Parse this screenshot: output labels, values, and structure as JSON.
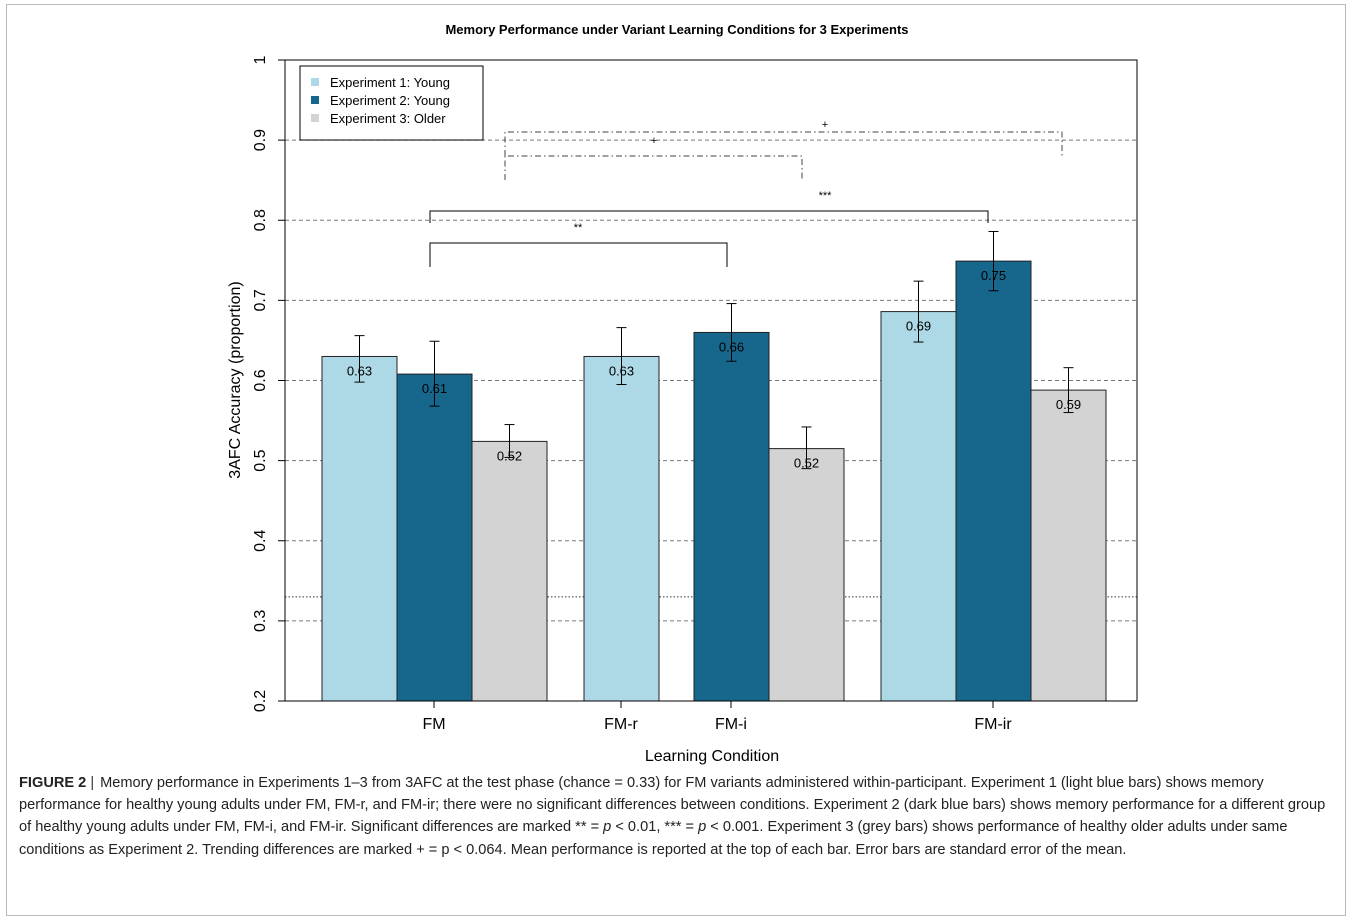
{
  "chart_data": {
    "type": "bar",
    "title": "Memory Performance under Variant Learning Conditions for 3 Experiments",
    "xlabel": "Learning Condition",
    "ylabel": "3AFC Accuracy (proportion)",
    "ylim": [
      0.2,
      1.0
    ],
    "yticks": [
      "0.2",
      "0.3",
      "0.4",
      "0.5",
      "0.6",
      "0.7",
      "0.8",
      "0.9",
      "1"
    ],
    "grid": "horizontal dashed at 0.3–0.9",
    "chance_line": 0.33,
    "legend_position": "top-left",
    "categories": [
      "FM",
      "FM-r",
      "FM-i",
      "FM-ir"
    ],
    "series": [
      {
        "name": "Experiment 1: Young",
        "color": "#add8e6",
        "bars": [
          {
            "category": "FM",
            "value": 0.63,
            "label": "0.63",
            "err_low": 0.598,
            "err_high": 0.656
          },
          {
            "category": "FM-r",
            "value": 0.63,
            "label": "0.63",
            "err_low": 0.595,
            "err_high": 0.666
          },
          {
            "category": "FM-ir",
            "value": 0.686,
            "label": "0.69",
            "err_low": 0.648,
            "err_high": 0.724
          }
        ]
      },
      {
        "name": "Experiment 2: Young",
        "color": "#17678d",
        "bars": [
          {
            "category": "FM",
            "value": 0.608,
            "label": "0.61",
            "err_low": 0.568,
            "err_high": 0.649
          },
          {
            "category": "FM-i",
            "value": 0.66,
            "label": "0.66",
            "err_low": 0.624,
            "err_high": 0.696
          },
          {
            "category": "FM-ir",
            "value": 0.749,
            "label": "0.75",
            "err_low": 0.712,
            "err_high": 0.786
          }
        ]
      },
      {
        "name": "Experiment 3: Older",
        "color": "#d3d3d3",
        "bars": [
          {
            "category": "FM",
            "value": 0.524,
            "label": "0.52",
            "err_low": 0.504,
            "err_high": 0.545
          },
          {
            "category": "FM-i",
            "value": 0.515,
            "label": "0.52",
            "err_low": 0.49,
            "err_high": 0.542
          },
          {
            "category": "FM-ir",
            "value": 0.588,
            "label": "0.59",
            "err_low": 0.56,
            "err_high": 0.616
          }
        ]
      }
    ],
    "significance": [
      {
        "label": "**",
        "from": "FM",
        "to": "FM-i",
        "style": "solid"
      },
      {
        "label": "***",
        "from": "FM",
        "to": "FM-ir",
        "style": "solid"
      },
      {
        "label": "+",
        "from": "FM",
        "to": "FM-i",
        "style": "dashdot"
      },
      {
        "label": "+",
        "from": "FM",
        "to": "FM-ir",
        "style": "dashdot"
      }
    ]
  },
  "caption": {
    "label": "FIGURE 2",
    "separator": "|",
    "text_1": "Memory performance in Experiments 1–3 from 3AFC at the test phase (chance = 0.33) for FM variants administered within-participant. Experiment 1 (light blue bars) shows memory performance for healthy young adults under FM, FM-r, and FM-ir; there were no significant differences between conditions. Experiment 2 (dark blue bars) shows memory performance for a different group of healthy young adults under FM, FM-i, and FM-ir. Significant differences are marked ** = ",
    "p1": "p",
    "text_2": " < 0.01, *** = ",
    "p2": "p",
    "text_3": " < 0.001. Experiment 3 (grey bars) shows performance of healthy older adults under same conditions as Experiment 2. Trending differences are marked + = p < 0.064. Mean performance is reported at the top of each bar. Error bars are standard error of the mean."
  }
}
